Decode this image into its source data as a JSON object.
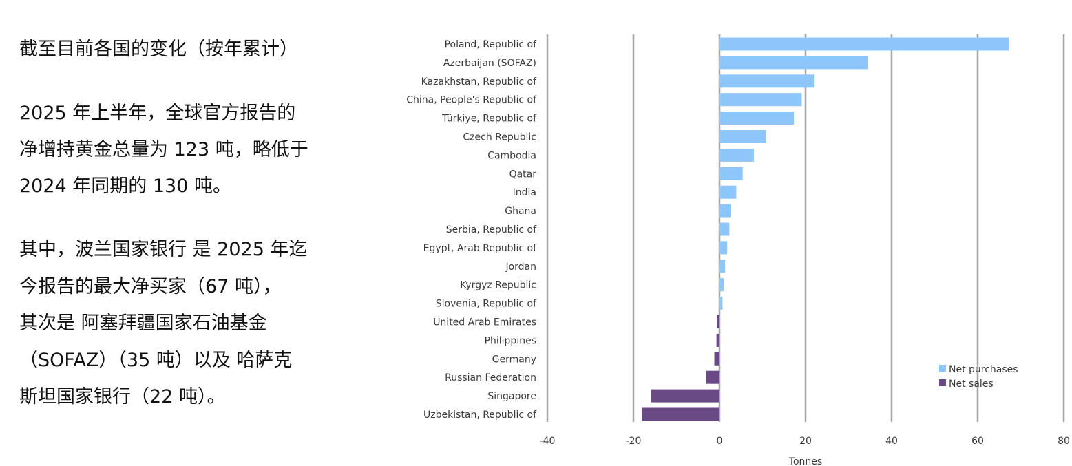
{
  "text": {
    "heading": "截至目前各国的变化（按年累计）",
    "para1": [
      "2025 年上半年，全球官方报告的",
      "净增持黄金总量为 123 吨，略低于",
      "2024 年同期的 130 吨。"
    ],
    "para2": [
      "其中，波兰国家银行 是 2025 年迄",
      "今报告的最大净买家（67 吨），",
      "其次是 阿塞拜疆国家石油基金",
      "（SOFAZ）（35 吨）以及 哈萨克",
      "斯坦国家银行（22 吨）。"
    ]
  },
  "colors": {
    "purchases": "#8cc6fa",
    "sales": "#6a4a84",
    "grid": "#a6a6a6",
    "text": "#3a3a3a"
  },
  "chart_data": {
    "type": "bar",
    "orientation": "horizontal",
    "title": "",
    "xlabel": "Tonnes",
    "ylabel": "",
    "xlim": [
      -40,
      80
    ],
    "xticks": [
      -40,
      -20,
      0,
      20,
      40,
      60,
      80
    ],
    "grid": true,
    "legend_position": "bottom-right",
    "categories": [
      "Poland, Republic of",
      "Azerbaijan (SOFAZ)",
      "Kazakhstan, Republic of",
      "China, People's Republic of",
      "Türkiye, Republic of",
      "Czech Republic",
      "Cambodia",
      "Qatar",
      "India",
      "Ghana",
      "Serbia, Republic of",
      "Egypt, Arab Republic of",
      "Jordan",
      "Kyrgyz Republic",
      "Slovenia, Republic of",
      "United Arab Emirates",
      "Philippines",
      "Germany",
      "Russian Federation",
      "Singapore",
      "Uzbekistan, Republic of"
    ],
    "values": [
      67.2,
      34.5,
      22.1,
      19.1,
      17.3,
      10.8,
      8.0,
      5.4,
      3.9,
      2.6,
      2.3,
      1.8,
      1.3,
      1.0,
      0.7,
      -0.6,
      -0.7,
      -1.2,
      -3.1,
      -15.9,
      -18.0
    ],
    "series": [
      {
        "name": "Net purchases",
        "color_key": "purchases"
      },
      {
        "name": "Net sales",
        "color_key": "sales"
      }
    ]
  }
}
